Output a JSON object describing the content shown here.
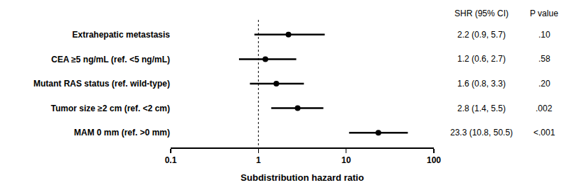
{
  "chart_data": {
    "type": "forest",
    "x_label": "Subdistribution hazard ratio",
    "categories": [
      "Extrahepatic metastasis",
      "CEA ≥5 ng/mL (ref. <5 ng/mL)",
      "Mutant RAS status (ref. wild-type)",
      "Tumor size ≥2 cm (ref. <2 cm)",
      "MAM 0 mm (ref. >0 mm)"
    ],
    "values": [
      2.2,
      1.2,
      1.6,
      2.8,
      23.3
    ],
    "ci_lower": [
      0.9,
      0.6,
      0.8,
      1.4,
      10.8
    ],
    "ci_upper": [
      5.7,
      2.7,
      3.3,
      5.5,
      50.5
    ],
    "value_labels": [
      "2.2 (0.9, 5.7)",
      "1.2 (0.6, 2.7)",
      "1.6 (0.8, 3.3)",
      "2.8 (1.4, 5.5)",
      "23.3 (10.8, 50.5)"
    ],
    "p_values": [
      ".10",
      ".58",
      ".20",
      ".002",
      "<.001"
    ],
    "columns": [
      "SHR (95% CI)",
      "P value"
    ],
    "reference_line": 1,
    "xlim": [
      0.1,
      100
    ],
    "xticks": [
      0.1,
      1,
      10,
      100
    ],
    "log": "x",
    "grid": false,
    "orientation": "horizontal",
    "marker": "circle",
    "color": "#000000"
  }
}
